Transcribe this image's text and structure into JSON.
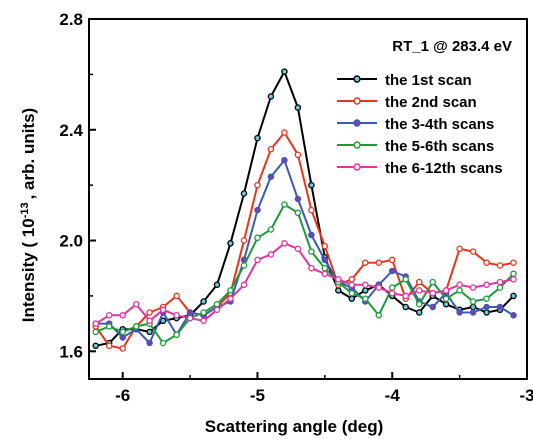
{
  "chart_data": {
    "type": "line",
    "annotation": "RT_1 @ 283.4 eV",
    "xlabel": "Scattering angle (deg)",
    "ylabel": {
      "before": "Intensity ( 10",
      "sup": "-13",
      "after": ", arb. units)"
    },
    "xlim": [
      -6.25,
      -3.0
    ],
    "ylim": [
      1.5,
      2.8
    ],
    "xticks": [
      -6,
      -5,
      -4,
      -3
    ],
    "xtick_labels": [
      "-6",
      "-5",
      "-4",
      "-3"
    ],
    "yticks": [
      1.6,
      2.0,
      2.4,
      2.8
    ],
    "ytick_labels": [
      "1.6",
      "2.0",
      "2.4",
      "2.8"
    ],
    "grid": false,
    "legend_position": "top-right",
    "x": [
      -6.2,
      -6.1,
      -6.0,
      -5.9,
      -5.8,
      -5.7,
      -5.6,
      -5.5,
      -5.4,
      -5.3,
      -5.2,
      -5.1,
      -5.0,
      -4.9,
      -4.8,
      -4.7,
      -4.6,
      -4.5,
      -4.4,
      -4.3,
      -4.2,
      -4.1,
      -4.0,
      -3.9,
      -3.8,
      -3.7,
      -3.6,
      -3.5,
      -3.4,
      -3.3,
      -3.2,
      -3.1
    ],
    "series": [
      {
        "name": "the 1st scan",
        "color": "#000000",
        "marker_fill": "#6ec8d8",
        "values": [
          1.62,
          1.63,
          1.68,
          1.68,
          1.67,
          1.71,
          1.72,
          1.73,
          1.78,
          1.84,
          1.99,
          2.17,
          2.37,
          2.52,
          2.61,
          2.48,
          2.2,
          1.94,
          1.82,
          1.79,
          1.82,
          1.84,
          1.8,
          1.76,
          1.74,
          1.8,
          1.77,
          1.75,
          1.76,
          1.74,
          1.75,
          1.8
        ]
      },
      {
        "name": "the 2nd scan",
        "color": "#e8341c",
        "marker_fill": "#ffffff",
        "values": [
          1.69,
          1.62,
          1.61,
          1.69,
          1.74,
          1.76,
          1.8,
          1.74,
          1.73,
          1.76,
          1.81,
          2.0,
          2.2,
          2.33,
          2.39,
          2.31,
          2.11,
          1.98,
          1.84,
          1.86,
          1.92,
          1.92,
          1.93,
          1.79,
          1.85,
          1.81,
          1.82,
          1.97,
          1.96,
          1.92,
          1.91,
          1.92
        ]
      },
      {
        "name": "the 3-4th scans",
        "color": "#3a5bb5",
        "marker_fill": "#7b3fb5",
        "values": [
          1.7,
          1.7,
          1.65,
          1.68,
          1.63,
          1.74,
          1.66,
          1.74,
          1.73,
          1.76,
          1.78,
          1.93,
          2.11,
          2.23,
          2.29,
          2.15,
          2.02,
          1.93,
          1.85,
          1.83,
          1.78,
          1.84,
          1.89,
          1.87,
          1.78,
          1.76,
          1.81,
          1.74,
          1.74,
          1.76,
          1.76,
          1.73
        ]
      },
      {
        "name": "the 5-6th scans",
        "color": "#1e9a3a",
        "marker_fill": "#ffffff",
        "values": [
          1.67,
          1.69,
          1.67,
          1.69,
          1.7,
          1.63,
          1.66,
          1.72,
          1.74,
          1.77,
          1.82,
          1.91,
          2.01,
          2.04,
          2.13,
          2.1,
          1.96,
          1.9,
          1.85,
          1.81,
          1.79,
          1.73,
          1.83,
          1.86,
          1.77,
          1.85,
          1.79,
          1.82,
          1.78,
          1.79,
          1.83,
          1.88
        ]
      },
      {
        "name": "the 6-12th scans",
        "color": "#e0359f",
        "marker_fill": "#ffffff",
        "values": [
          1.7,
          1.73,
          1.73,
          1.77,
          1.71,
          1.75,
          1.73,
          1.72,
          1.71,
          1.75,
          1.79,
          1.84,
          1.93,
          1.95,
          1.99,
          1.97,
          1.9,
          1.88,
          1.86,
          1.84,
          1.84,
          1.83,
          1.81,
          1.8,
          1.82,
          1.81,
          1.82,
          1.84,
          1.83,
          1.84,
          1.85,
          1.86
        ]
      }
    ]
  }
}
